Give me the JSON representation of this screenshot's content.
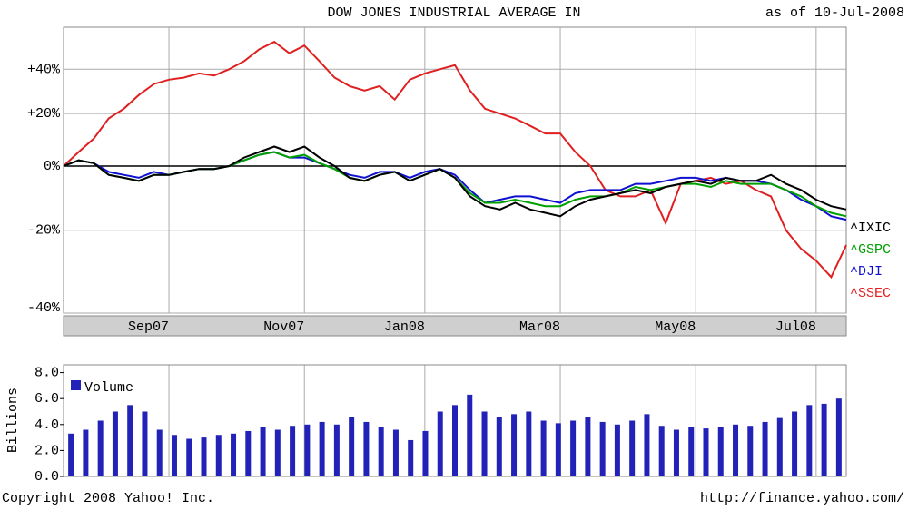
{
  "chart_data": [
    {
      "type": "line",
      "title": "DOW JONES INDUSTRIAL AVERAGE IN",
      "subtitle": "as of 10-Jul-2008",
      "categories": [
        null,
        null,
        null,
        null,
        null,
        null,
        null,
        "Sep07",
        null,
        null,
        null,
        null,
        null,
        null,
        null,
        null,
        "Nov07",
        null,
        null,
        null,
        null,
        null,
        null,
        null,
        "Jan08",
        null,
        null,
        null,
        null,
        null,
        null,
        null,
        null,
        "Mar08",
        null,
        null,
        null,
        null,
        null,
        null,
        null,
        null,
        "May08",
        null,
        null,
        null,
        null,
        null,
        null,
        null,
        "Jul08",
        null,
        null
      ],
      "series": [
        {
          "name": "^IXIC",
          "color": "#000000",
          "values": [
            0,
            2,
            1,
            -3,
            -4,
            -5,
            -3,
            -3,
            -2,
            -1,
            -1,
            0,
            3,
            5,
            7,
            5,
            7,
            3,
            0,
            -4,
            -5,
            -3,
            -2,
            -5,
            -3,
            -1,
            -4,
            -10,
            -13,
            -14,
            -12,
            -14,
            -15,
            -16,
            -13,
            -11,
            -10,
            -9,
            -8,
            -9,
            -7,
            -6,
            -5,
            -6,
            -4,
            -5,
            -5,
            -3,
            -6,
            -8,
            -11,
            -13,
            -14
          ]
        },
        {
          "name": "^GSPC",
          "color": "#00a000",
          "values": [
            0,
            2,
            1,
            -3,
            -4,
            -5,
            -3,
            -3,
            -2,
            -1,
            -1,
            0,
            2,
            4,
            5,
            3,
            4,
            1,
            -1,
            -4,
            -5,
            -3,
            -2,
            -5,
            -3,
            -1,
            -4,
            -9,
            -12,
            -12,
            -11,
            -12,
            -13,
            -13,
            -11,
            -10,
            -10,
            -9,
            -7,
            -8,
            -7,
            -6,
            -6,
            -7,
            -5,
            -6,
            -6,
            -6,
            -8,
            -10,
            -13,
            -15,
            -16
          ]
        },
        {
          "name": "^DJI",
          "color": "#1010d0",
          "values": [
            0,
            2,
            1,
            -2,
            -3,
            -4,
            -2,
            -3,
            -2,
            -1,
            -1,
            0,
            2,
            4,
            5,
            3,
            3,
            1,
            -1,
            -3,
            -4,
            -2,
            -2,
            -4,
            -2,
            -1,
            -3,
            -8,
            -12,
            -11,
            -10,
            -10,
            -11,
            -12,
            -9,
            -8,
            -8,
            -8,
            -6,
            -6,
            -5,
            -4,
            -4,
            -5,
            -4,
            -5,
            -5,
            -6,
            -8,
            -11,
            -13,
            -16,
            -17
          ]
        },
        {
          "name": "^SSEC",
          "color": "#e02020",
          "values": [
            0,
            5,
            10,
            18,
            22,
            28,
            33,
            35,
            36,
            38,
            37,
            40,
            44,
            50,
            54,
            48,
            52,
            44,
            36,
            32,
            30,
            32,
            26,
            35,
            38,
            40,
            42,
            30,
            22,
            20,
            18,
            15,
            12,
            12,
            5,
            0,
            -8,
            -10,
            -10,
            -8,
            -18,
            -6,
            -5,
            -4,
            -6,
            -5,
            -8,
            -10,
            -20,
            -25,
            -28,
            -32,
            -24
          ]
        }
      ],
      "ylim": [
        -40,
        62
      ],
      "log_scale": true,
      "grid": true,
      "yticks": [
        {
          "value": 40,
          "label": "+40%"
        },
        {
          "value": 20,
          "label": "+20%"
        },
        {
          "value": 0,
          "label": "0%"
        },
        {
          "value": -20,
          "label": "-20%"
        },
        {
          "value": -40,
          "label": "-40%"
        }
      ]
    },
    {
      "type": "bar",
      "ylabel": "Billions",
      "series": [
        {
          "name": "Volume",
          "color": "#2222b8",
          "values": [
            3.3,
            3.6,
            4.3,
            5.0,
            5.5,
            5.0,
            3.6,
            3.2,
            2.9,
            3.0,
            3.2,
            3.3,
            3.5,
            3.8,
            3.6,
            3.9,
            4.0,
            4.2,
            4.0,
            4.6,
            4.2,
            3.8,
            3.6,
            2.8,
            3.5,
            5.0,
            5.5,
            6.3,
            5.0,
            4.6,
            4.8,
            5.0,
            4.3,
            4.1,
            4.3,
            4.6,
            4.2,
            4.0,
            4.3,
            4.8,
            3.9,
            3.6,
            3.8,
            3.7,
            3.8,
            4.0,
            3.9,
            4.2,
            4.5,
            5.0,
            5.5,
            5.6,
            6.0
          ]
        }
      ],
      "ylim": [
        0,
        8.6
      ],
      "yticks": [
        {
          "value": 0,
          "label": "0.0"
        },
        {
          "value": 2,
          "label": "2.0"
        },
        {
          "value": 4,
          "label": "4.0"
        },
        {
          "value": 6,
          "label": "6.0"
        },
        {
          "value": 8,
          "label": "8.0"
        }
      ]
    }
  ],
  "footer": {
    "copyright": "Copyright 2008 Yahoo! Inc.",
    "url": "http://finance.yahoo.com/"
  }
}
